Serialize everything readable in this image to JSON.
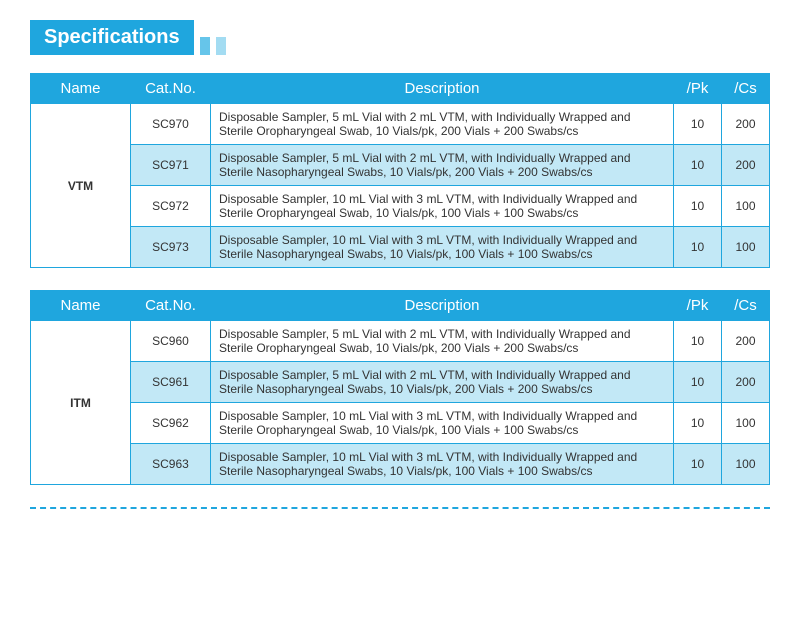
{
  "title": "Specifications",
  "colors": {
    "primary": "#1fa6de",
    "alt_row": "#c2e8f6",
    "stripe1": "#66c5ea",
    "stripe2": "#a3dcf2",
    "text": "#333333",
    "bg": "#ffffff"
  },
  "columns": [
    "Name",
    "Cat.No.",
    "Description",
    "/Pk",
    "/Cs"
  ],
  "tables": [
    {
      "name": "VTM",
      "rows": [
        {
          "cat": "SC970",
          "desc": "Disposable Sampler, 5 mL Vial with 2 mL VTM, with Individually Wrapped and Sterile Oropharyngeal Swab, 10 Vials/pk, 200 Vials + 200 Swabs/cs",
          "pk": "10",
          "cs": "200"
        },
        {
          "cat": "SC971",
          "desc": "Disposable Sampler, 5 mL Vial with 2 mL VTM, with Individually Wrapped and Sterile Nasopharyngeal Swabs, 10 Vials/pk, 200 Vials + 200 Swabs/cs",
          "pk": "10",
          "cs": "200"
        },
        {
          "cat": "SC972",
          "desc": "Disposable Sampler, 10 mL Vial with 3 mL VTM, with Individually Wrapped and Sterile Oropharyngeal Swab, 10 Vials/pk, 100 Vials + 100 Swabs/cs",
          "pk": "10",
          "cs": "100"
        },
        {
          "cat": "SC973",
          "desc": "Disposable Sampler, 10 mL Vial with 3 mL VTM, with Individually Wrapped and Sterile Nasopharyngeal Swabs, 10 Vials/pk, 100 Vials + 100 Swabs/cs",
          "pk": "10",
          "cs": "100"
        }
      ]
    },
    {
      "name": "ITM",
      "rows": [
        {
          "cat": "SC960",
          "desc": "Disposable Sampler, 5 mL Vial with 2 mL VTM, with Individually Wrapped and Sterile Oropharyngeal Swab, 10 Vials/pk, 200 Vials + 200 Swabs/cs",
          "pk": "10",
          "cs": "200"
        },
        {
          "cat": "SC961",
          "desc": "Disposable Sampler, 5 mL Vial with 2 mL VTM, with Individually Wrapped and Sterile Nasopharyngeal Swabs, 10 Vials/pk, 200 Vials + 200 Swabs/cs",
          "pk": "10",
          "cs": "200"
        },
        {
          "cat": "SC962",
          "desc": "Disposable Sampler, 10 mL Vial with 3 mL VTM, with Individually Wrapped and Sterile Oropharyngeal Swab, 10 Vials/pk, 100 Vials + 100 Swabs/cs",
          "pk": "10",
          "cs": "100"
        },
        {
          "cat": "SC963",
          "desc": "Disposable Sampler, 10 mL Vial with 3 mL VTM, with Individually Wrapped and Sterile Nasopharyngeal Swabs, 10 Vials/pk, 100 Vials + 100 Swabs/cs",
          "pk": "10",
          "cs": "100"
        }
      ]
    }
  ]
}
